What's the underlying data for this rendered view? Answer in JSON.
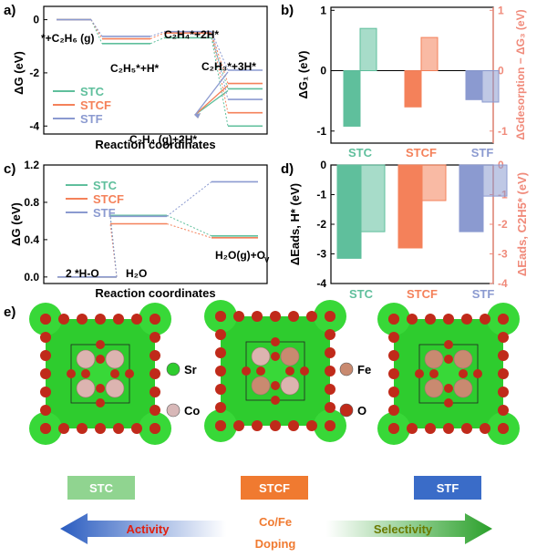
{
  "colors": {
    "STC": "#5fbf9c",
    "STCF": "#f4815a",
    "STF": "#8b9ad0",
    "right_axis": "#f08a7a"
  },
  "chart_data": [
    {
      "panel": "a)",
      "type": "line",
      "ylabel": "ΔG (eV)",
      "xlabel": "Reaction coordinates",
      "ylim": [
        -4.3,
        0.5
      ],
      "yticks": [
        0,
        -2,
        -4
      ],
      "series": [
        {
          "name": "STC",
          "values": [
            0,
            -0.9,
            -0.68,
            -4.0
          ]
        },
        {
          "name": "STCF",
          "values": [
            0,
            -0.72,
            -0.5,
            -3.5
          ]
        },
        {
          "name": "STF",
          "values": [
            0,
            -0.63,
            -0.45,
            -3.0
          ]
        }
      ],
      "extra_levels": {
        "STC": -2.6,
        "STCF": -2.4,
        "STF": -1.9
      },
      "annotations": [
        "*+C₂H₆ (g)",
        "C₂H₅*+H*",
        "C₂H₄*+2H*",
        "C₂H₃*+3H*",
        "C₂H₄ (g)+2H*"
      ],
      "legend": [
        "STC",
        "STCF",
        "STF"
      ]
    },
    {
      "panel": "b)",
      "type": "bar",
      "ylabel": "ΔG₁ (eV)",
      "ylabel_right": "ΔGdesorption − ΔG₃ (eV)",
      "ylabel_right_sub": "desorption",
      "ylim": [
        -1.2,
        1.05
      ],
      "yticks": [
        1,
        0,
        -1
      ],
      "ylim_right": [
        -1.2,
        1.05
      ],
      "yticks_right": [
        1,
        0,
        -1
      ],
      "categories": [
        "STC",
        "STCF",
        "STF"
      ],
      "series": [
        {
          "name": "ΔG1",
          "values": [
            -0.92,
            -0.6,
            -0.48
          ]
        },
        {
          "name": "ΔGdesorption-ΔG3",
          "values": [
            0.7,
            0.55,
            -0.52
          ]
        }
      ]
    },
    {
      "panel": "c)",
      "type": "line",
      "ylabel": "ΔG (eV)",
      "xlabel": "Reaction coordinates",
      "ylim": [
        -0.07,
        1.2
      ],
      "yticks": [
        0.0,
        0.4,
        0.8,
        1.2
      ],
      "series": [
        {
          "name": "STC",
          "values": [
            0,
            0.66,
            0.44
          ]
        },
        {
          "name": "STCF",
          "values": [
            0,
            0.57,
            0.42
          ]
        },
        {
          "name": "STF",
          "values": [
            0,
            0.65,
            1.02
          ]
        }
      ],
      "annotations": [
        "2 *H-O",
        "H₂O",
        "H₂O(g)+O"
      ],
      "ann_sub": "V",
      "legend": [
        "STC",
        "STCF",
        "STF"
      ]
    },
    {
      "panel": "d)",
      "type": "bar",
      "ylabel": "ΔEads, H* (eV)",
      "ylabel_right": "ΔEads, C2H5* (eV)",
      "ylim": [
        -4,
        0
      ],
      "yticks": [
        0,
        -1,
        -2,
        -3,
        -4
      ],
      "yticks_right": [
        0,
        -1,
        -2,
        -3,
        -4
      ],
      "categories": [
        "STC",
        "STCF",
        "STF"
      ],
      "series": [
        {
          "name": "H*",
          "values": [
            -3.15,
            -2.8,
            -2.25
          ]
        },
        {
          "name": "C2H5*",
          "values": [
            -2.25,
            -1.2,
            -1.05
          ]
        }
      ]
    }
  ],
  "panel_e": {
    "label": "e)",
    "legend": [
      {
        "sym": "Sr",
        "color": "#2ecc2e"
      },
      {
        "sym": "Fe",
        "color": "#c98a70"
      },
      {
        "sym": "Co",
        "color": "#d8b8b8"
      },
      {
        "sym": "O",
        "color": "#c02a1a"
      }
    ],
    "boxes": [
      {
        "text": "STC",
        "color": "#90d490"
      },
      {
        "text": "STCF",
        "color": "#f07a30"
      },
      {
        "text": "STF",
        "color": "#3a6cc8"
      }
    ],
    "left_arrow": "Activity",
    "right_arrow": "Selectivity",
    "center_top": "Co/Fe",
    "center_bottom": "Doping"
  }
}
